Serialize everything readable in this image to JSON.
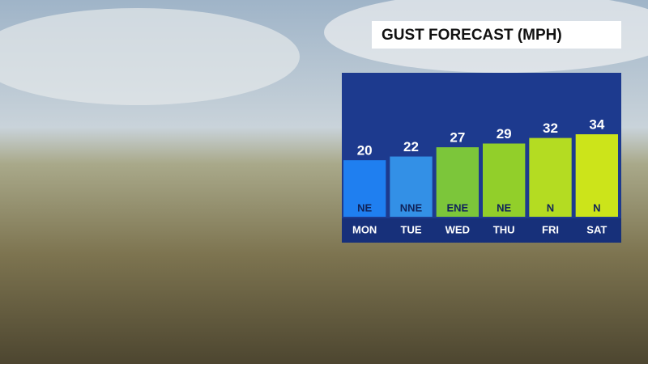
{
  "chart_data": {
    "type": "bar",
    "title": "GUST FORECAST (MPH)",
    "categories": [
      "MON",
      "TUE",
      "WED",
      "THU",
      "FRI",
      "SAT"
    ],
    "values": [
      20,
      22,
      27,
      29,
      32,
      34
    ],
    "directions": [
      "NE",
      "NNE",
      "ENE",
      "NE",
      "N",
      "N"
    ],
    "colors": [
      "#1f7ff0",
      "#3390e6",
      "#7cc63a",
      "#92cf2a",
      "#b4dc22",
      "#cce41a"
    ]
  }
}
